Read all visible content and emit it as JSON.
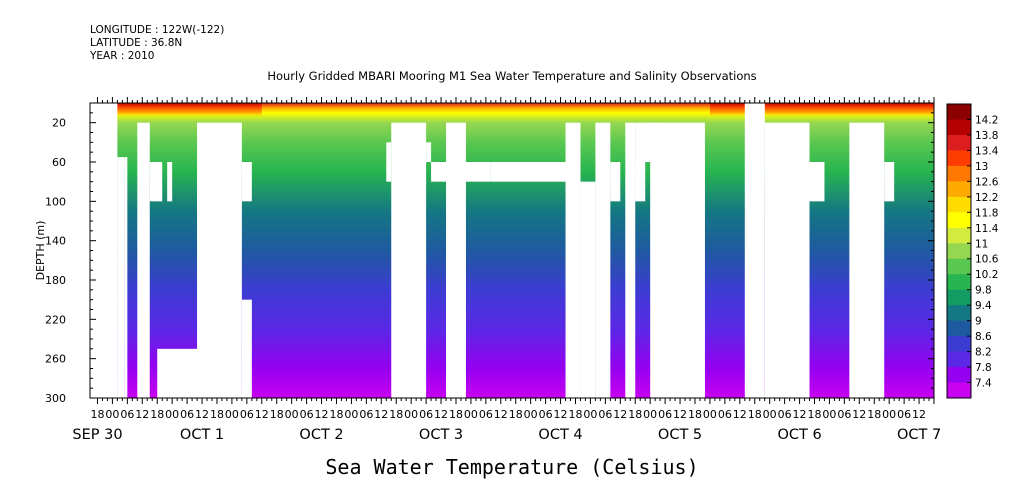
{
  "header": {
    "longitude": "LONGITUDE : 122W(-122)",
    "latitude": "LATITUDE : 36.8N",
    "year": "YEAR : 2010"
  },
  "chart_data": {
    "type": "heatmap",
    "title": "Hourly Gridded MBARI Mooring M1 Sea Water Temperature and Salinity Observations",
    "bottom_title": "Sea Water Temperature (Celsius)",
    "ylabel": "DEPTH (m)",
    "xlabel": "",
    "y_reversed": true,
    "ylim": [
      0,
      300
    ],
    "y_ticks": [
      20,
      60,
      100,
      140,
      180,
      220,
      260,
      300
    ],
    "y_tick_labels": [
      "20",
      "60",
      "100",
      "140",
      "180",
      "220",
      "260",
      "300"
    ],
    "x_range_hours": [
      -9,
      330
    ],
    "x_major_hours": [
      -6,
      0,
      6,
      12,
      18,
      24,
      30,
      36,
      42,
      48,
      54,
      60,
      66,
      72,
      78,
      84,
      90,
      96,
      102,
      108,
      114,
      120,
      126,
      132,
      138,
      144,
      150,
      156,
      162,
      168,
      174,
      180,
      186,
      192,
      198,
      204,
      210,
      216,
      222,
      228,
      234,
      240,
      246,
      252,
      258,
      264,
      270,
      276,
      282,
      288,
      294,
      300,
      306,
      312,
      318,
      324
    ],
    "x_hour_labels": [
      "18",
      "00",
      "06",
      "12",
      "18",
      "00",
      "06",
      "12",
      "18",
      "00",
      "06",
      "12",
      "18",
      "00",
      "06",
      "12",
      "18",
      "00",
      "06",
      "12",
      "18",
      "00",
      "06",
      "12",
      "18",
      "00",
      "06",
      "12",
      "18",
      "00",
      "06",
      "12",
      "18",
      "00",
      "06",
      "12",
      "18",
      "00",
      "06",
      "12",
      "18",
      "00",
      "06",
      "12",
      "18",
      "00",
      "06",
      "12",
      "18",
      "00",
      "06",
      "12",
      "18",
      "00",
      "06",
      "12"
    ],
    "date_labels": [
      {
        "hour": -6,
        "label": "SEP 30"
      },
      {
        "hour": 36,
        "label": "OCT  1"
      },
      {
        "hour": 84,
        "label": "OCT  2"
      },
      {
        "hour": 132,
        "label": "OCT  3"
      },
      {
        "hour": 180,
        "label": "OCT  4"
      },
      {
        "hour": 228,
        "label": "OCT  5"
      },
      {
        "hour": 276,
        "label": "OCT  6"
      },
      {
        "hour": 324,
        "label": "OCT  7"
      }
    ],
    "colorbar": {
      "labels": [
        "14.2",
        "13.8",
        "13.4",
        "13",
        "12.6",
        "12.2",
        "11.8",
        "11.4",
        "11",
        "10.6",
        "10.2",
        "9.8",
        "9.4",
        "9",
        "8.6",
        "8.2",
        "7.8",
        "7.4"
      ],
      "colors": [
        "#8b0000",
        "#b40000",
        "#dc1e1e",
        "#ff3c00",
        "#ff7800",
        "#ffaa00",
        "#ffdc00",
        "#ffff00",
        "#d2eb3c",
        "#96d750",
        "#5ac850",
        "#28b450",
        "#149b64",
        "#147882",
        "#1e5aa0",
        "#3c3cd2",
        "#5a28e6",
        "#9600f0",
        "#c800f0"
      ],
      "vmin": 7.4,
      "vmax": 14.4
    },
    "profile_temperature": [
      {
        "depth": 0,
        "value": 13.6
      },
      {
        "depth": 5,
        "value": 12.4
      },
      {
        "depth": 10,
        "value": 11.8
      },
      {
        "depth": 20,
        "value": 11.0
      },
      {
        "depth": 40,
        "value": 10.4
      },
      {
        "depth": 70,
        "value": 10.0
      },
      {
        "depth": 110,
        "value": 9.6
      },
      {
        "depth": 150,
        "value": 9.0
      },
      {
        "depth": 190,
        "value": 8.6
      },
      {
        "depth": 230,
        "value": 8.2
      },
      {
        "depth": 270,
        "value": 7.8
      },
      {
        "depth": 300,
        "value": 7.5
      }
    ],
    "surface_warm_hours": [
      [
        0,
        60
      ],
      [
        240,
        330
      ]
    ],
    "gaps": [
      {
        "x": [
          -9,
          2
        ],
        "y": [
          0,
          300
        ]
      },
      {
        "x": [
          -9,
          0
        ],
        "y": [
          0,
          17
        ]
      },
      {
        "x": [
          2,
          5
        ],
        "y": [
          55,
          300
        ]
      },
      {
        "x": [
          5,
          6
        ],
        "y": [
          55,
          300
        ]
      },
      {
        "x": [
          10,
          15
        ],
        "y": [
          20,
          300
        ]
      },
      {
        "x": [
          15,
          20
        ],
        "y": [
          60,
          100
        ]
      },
      {
        "x": [
          22,
          24
        ],
        "y": [
          60,
          100
        ]
      },
      {
        "x": [
          18,
          40
        ],
        "y": [
          250,
          300
        ]
      },
      {
        "x": [
          34,
          52
        ],
        "y": [
          20,
          300
        ]
      },
      {
        "x": [
          52,
          56
        ],
        "y": [
          60,
          100
        ]
      },
      {
        "x": [
          52,
          56
        ],
        "y": [
          200,
          300
        ]
      },
      {
        "x": [
          110,
          112
        ],
        "y": [
          40,
          80
        ]
      },
      {
        "x": [
          112,
          126
        ],
        "y": [
          20,
          300
        ]
      },
      {
        "x": [
          126,
          128
        ],
        "y": [
          40,
          60
        ]
      },
      {
        "x": [
          128,
          152
        ],
        "y": [
          60,
          80
        ]
      },
      {
        "x": [
          134,
          142
        ],
        "y": [
          20,
          300
        ]
      },
      {
        "x": [
          152,
          188
        ],
        "y": [
          60,
          80
        ]
      },
      {
        "x": [
          182,
          188
        ],
        "y": [
          20,
          300
        ]
      },
      {
        "x": [
          188,
          194
        ],
        "y": [
          80,
          300
        ]
      },
      {
        "x": [
          194,
          200
        ],
        "y": [
          20,
          300
        ]
      },
      {
        "x": [
          200,
          204
        ],
        "y": [
          60,
          100
        ]
      },
      {
        "x": [
          206,
          210
        ],
        "y": [
          20,
          300
        ]
      },
      {
        "x": [
          208,
          210
        ],
        "y": [
          60,
          100
        ]
      },
      {
        "x": [
          210,
          220
        ],
        "y": [
          20,
          60
        ]
      },
      {
        "x": [
          210,
          214
        ],
        "y": [
          60,
          100
        ]
      },
      {
        "x": [
          216,
          238
        ],
        "y": [
          20,
          300
        ]
      },
      {
        "x": [
          254,
          262
        ],
        "y": [
          0,
          300
        ]
      },
      {
        "x": [
          258,
          262
        ],
        "y": [
          0,
          20
        ]
      },
      {
        "x": [
          262,
          280
        ],
        "y": [
          20,
          300
        ]
      },
      {
        "x": [
          280,
          286
        ],
        "y": [
          60,
          100
        ]
      },
      {
        "x": [
          296,
          310
        ],
        "y": [
          20,
          300
        ]
      },
      {
        "x": [
          310,
          314
        ],
        "y": [
          60,
          100
        ]
      }
    ]
  }
}
